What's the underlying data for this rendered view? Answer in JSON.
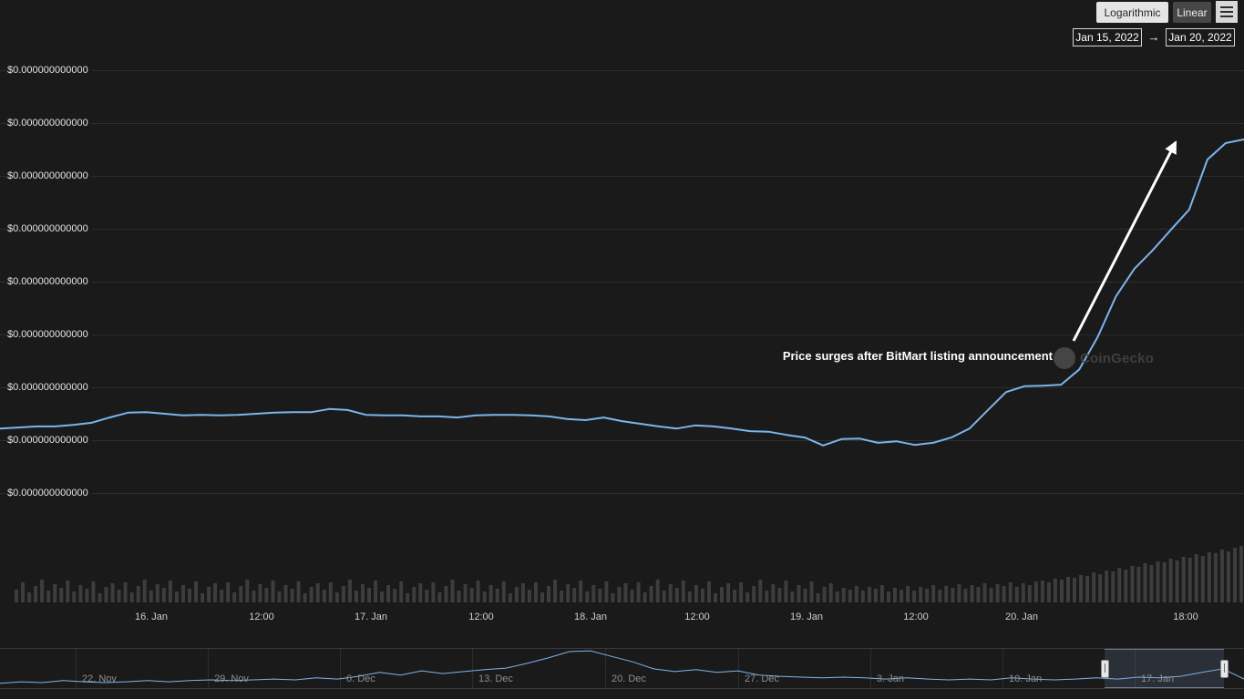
{
  "toolbar": {
    "scale_buttons": [
      {
        "label": "Logarithmic"
      },
      {
        "label": "Linear"
      }
    ],
    "menu_button": {
      "icon": "hamburger-icon"
    },
    "date_from": "Jan 15, 2022",
    "date_separator": "→",
    "date_to": "Jan 20, 2022"
  },
  "watermark": {
    "text": "CoinGecko",
    "icon": "coingecko-logo-circle"
  },
  "colors": {
    "background": "#1a1a1a",
    "price_line": "#7cb5ec",
    "grid": "#2d2d2d",
    "volume_bar": "#3d3d3d",
    "annotation": "#ffffff",
    "axis_label": "#cfcfcf",
    "nav_label": "#8f8f8f"
  },
  "chart_data": {
    "type": "line",
    "title": "",
    "x_axis": {
      "visible_tick_labels": [
        "16. Jan",
        "12:00",
        "17. Jan",
        "12:00",
        "18. Jan",
        "12:00",
        "19. Jan",
        "12:00",
        "20. Jan",
        "18:00"
      ],
      "range_selected": [
        "Jan 15, 2022",
        "Jan 20, 2022"
      ]
    },
    "y_axis": {
      "tick_labels": [
        "$0.000000000000",
        "$0.000000000000",
        "$0.000000000000",
        "$0.000000000000",
        "$0.000000000000",
        "$0.000000000000",
        "$0.000000000000",
        "$0.000000000000",
        "$0.000000000000"
      ],
      "note": "every visible y tick renders as $0.000000000000; series values are estimated in units of one gridline step (~1e-13 USD)"
    },
    "series": [
      {
        "name": "price",
        "unit": "gridline steps (~1e-13 USD, estimated)",
        "values": [
          1.22,
          1.24,
          1.26,
          1.26,
          1.29,
          1.33,
          1.43,
          1.52,
          1.53,
          1.5,
          1.47,
          1.48,
          1.47,
          1.48,
          1.5,
          1.52,
          1.53,
          1.53,
          1.59,
          1.57,
          1.48,
          1.47,
          1.47,
          1.45,
          1.45,
          1.43,
          1.47,
          1.48,
          1.48,
          1.47,
          1.45,
          1.4,
          1.38,
          1.43,
          1.36,
          1.31,
          1.26,
          1.22,
          1.28,
          1.26,
          1.22,
          1.17,
          1.16,
          1.1,
          1.05,
          0.9,
          1.02,
          1.03,
          0.95,
          0.98,
          0.91,
          0.95,
          1.05,
          1.22,
          1.57,
          1.91,
          2.02,
          2.03,
          2.05,
          2.34,
          2.95,
          3.72,
          4.24,
          4.59,
          4.98,
          5.36,
          6.31,
          6.62,
          6.69
        ]
      },
      {
        "name": "volume",
        "unit": "relative height",
        "values": [
          14,
          22,
          11,
          18,
          25,
          13,
          20,
          16,
          24,
          12,
          19,
          15,
          23,
          10,
          17,
          21,
          14,
          22,
          11,
          18,
          25,
          13,
          20,
          16,
          24,
          12,
          19,
          15,
          23,
          10,
          17,
          21,
          14,
          22,
          11,
          18,
          25,
          13,
          20,
          16,
          24,
          12,
          19,
          15,
          23,
          10,
          17,
          21,
          14,
          22,
          11,
          18,
          25,
          13,
          20,
          16,
          24,
          12,
          19,
          15,
          23,
          10,
          17,
          21,
          14,
          22,
          11,
          18,
          25,
          13,
          20,
          16,
          24,
          12,
          19,
          15,
          23,
          10,
          17,
          21,
          14,
          22,
          11,
          18,
          25,
          13,
          20,
          16,
          24,
          12,
          19,
          15,
          23,
          10,
          17,
          21,
          14,
          22,
          11,
          18,
          25,
          13,
          20,
          16,
          24,
          12,
          19,
          15,
          23,
          10,
          17,
          21,
          14,
          22,
          11,
          18,
          25,
          13,
          20,
          16,
          24,
          12,
          19,
          15,
          23,
          10,
          17,
          21,
          12,
          16,
          14,
          18,
          13,
          17,
          15,
          19,
          12,
          16,
          14,
          18,
          13,
          17,
          15,
          19,
          14,
          18,
          16,
          20,
          15,
          19,
          17,
          21,
          16,
          20,
          18,
          22,
          17,
          21,
          19,
          23,
          24,
          22,
          26,
          25,
          28,
          27,
          30,
          29,
          33,
          31,
          35,
          34,
          38,
          36,
          40,
          39,
          43,
          41,
          45,
          44,
          48,
          46,
          50,
          49,
          53,
          51,
          55,
          54,
          58,
          56,
          60,
          62
        ]
      },
      {
        "name": "navigator_price",
        "unit": "normalized 0-1",
        "values": [
          0.12,
          0.16,
          0.14,
          0.19,
          0.16,
          0.14,
          0.16,
          0.19,
          0.16,
          0.19,
          0.21,
          0.19,
          0.21,
          0.23,
          0.21,
          0.26,
          0.23,
          0.3,
          0.4,
          0.33,
          0.44,
          0.37,
          0.42,
          0.47,
          0.51,
          0.63,
          0.77,
          0.93,
          0.95,
          0.81,
          0.67,
          0.49,
          0.42,
          0.47,
          0.4,
          0.44,
          0.33,
          0.3,
          0.28,
          0.26,
          0.28,
          0.26,
          0.23,
          0.26,
          0.23,
          0.21,
          0.23,
          0.21,
          0.26,
          0.23,
          0.21,
          0.23,
          0.26,
          0.23,
          0.28,
          0.26,
          0.3,
          0.4,
          0.49,
          0.23
        ]
      }
    ],
    "annotations": [
      {
        "text": "Price surges after BitMart listing announcement",
        "arrow": "white arrow pointing up-right toward the surge"
      }
    ],
    "navigator": {
      "tick_labels": [
        "22. Nov",
        "29. Nov",
        "6. Dec",
        "13. Dec",
        "20. Dec",
        "27. Dec",
        "3. Jan",
        "10. Jan",
        "17. Jan"
      ],
      "selected_window": "≈ Jan 15 – Jan 20"
    },
    "grid": true,
    "legend": false
  }
}
